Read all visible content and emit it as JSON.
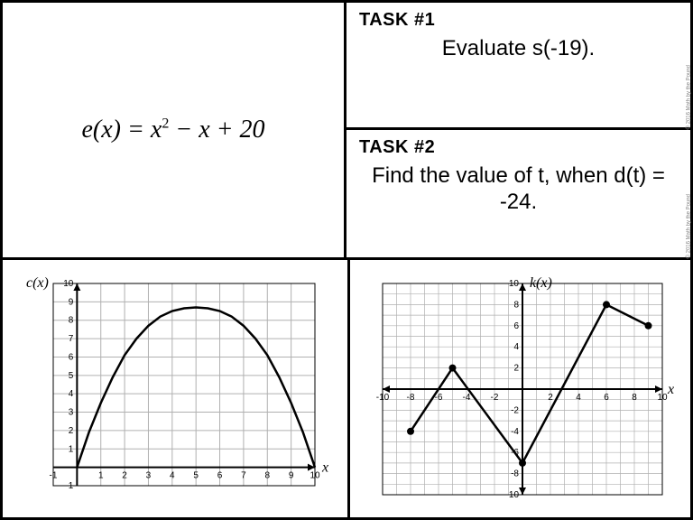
{
  "formula": {
    "lhs": "e(x)",
    "rhs_a": "x",
    "rhs_exp": "2",
    "rhs_rest": " − x + 20"
  },
  "task1": {
    "heading": "TASK #1",
    "body": "Evaluate s(-19)."
  },
  "task2": {
    "heading": "TASK #2",
    "body": "Find the value of t, when d(t) = -24."
  },
  "credit": "© 2016 Math by the Pound",
  "chart_c": {
    "type": "line",
    "y_label": "c(x)",
    "x_label": "x",
    "xlim": [
      -1,
      10
    ],
    "ylim": [
      -1,
      10
    ],
    "xtick_step": 1,
    "ytick_step": 1,
    "grid_color": "#b0b0b0",
    "axis_color": "#000000",
    "background": "#ffffff",
    "line_color": "#000000",
    "line_width": 2.5,
    "curve_points": [
      [
        0,
        0
      ],
      [
        0.5,
        1.9
      ],
      [
        1,
        3.5
      ],
      [
        1.5,
        4.9
      ],
      [
        2,
        6.1
      ],
      [
        2.5,
        7
      ],
      [
        3,
        7.7
      ],
      [
        3.5,
        8.2
      ],
      [
        4,
        8.5
      ],
      [
        4.5,
        8.65
      ],
      [
        5,
        8.7
      ],
      [
        5.5,
        8.65
      ],
      [
        6,
        8.5
      ],
      [
        6.5,
        8.2
      ],
      [
        7,
        7.7
      ],
      [
        7.5,
        7
      ],
      [
        8,
        6.1
      ],
      [
        8.5,
        4.9
      ],
      [
        9,
        3.5
      ],
      [
        9.5,
        1.9
      ],
      [
        10,
        0
      ]
    ]
  },
  "chart_k": {
    "type": "line",
    "y_label": "k(x)",
    "x_label": "x",
    "xlim": [
      -10,
      10
    ],
    "ylim": [
      -10,
      10
    ],
    "xtick_step": 2,
    "ytick_step": 2,
    "grid_minor_step": 1,
    "grid_color": "#b0b0b0",
    "axis_color": "#000000",
    "background": "#ffffff",
    "line_color": "#000000",
    "line_width": 2.5,
    "marker_color": "#000000",
    "marker_radius": 4,
    "points": [
      [
        -8,
        -4
      ],
      [
        -5,
        2
      ],
      [
        0,
        -7
      ],
      [
        6,
        8
      ],
      [
        9,
        6
      ]
    ]
  }
}
